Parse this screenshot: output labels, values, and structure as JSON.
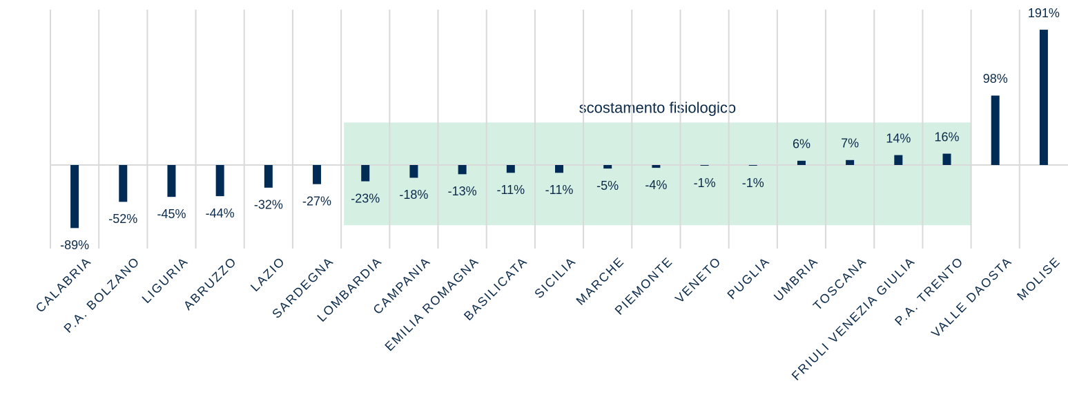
{
  "chart_data": {
    "type": "bar",
    "categories": [
      "CALABRIA",
      "P.A. BOLZANO",
      "LIGURIA",
      "ABRUZZO",
      "LAZIO",
      "SARDEGNA",
      "LOMBARDIA",
      "CAMPANIA",
      "EMILIA ROMAGNA",
      "BASILICATA",
      "SICILIA",
      "MARCHE",
      "PIEMONTE",
      "VENETO",
      "PUGLIA",
      "UMBRIA",
      "TOSCANA",
      "FRIULI VENEZIA GIULIA",
      "P.A. TRENTO",
      "VALLE DAOSTA",
      "MOLISE"
    ],
    "values": [
      -89,
      -52,
      -45,
      -44,
      -32,
      -27,
      -23,
      -18,
      -13,
      -11,
      -11,
      -5,
      -4,
      -1,
      -1,
      6,
      7,
      14,
      16,
      98,
      191
    ],
    "value_labels": [
      "-89%",
      "-52%",
      "-45%",
      "-44%",
      "-32%",
      "-27%",
      "-23%",
      "-18%",
      "-13%",
      "-11%",
      "-11%",
      "-5%",
      "-4%",
      "-1%",
      "-1%",
      "6%",
      "7%",
      "14%",
      "16%",
      "98%",
      "191%"
    ],
    "color": "#002b55",
    "ylim": [
      -100,
      200
    ],
    "grid": true,
    "band": {
      "label": "scostamento fisiologico",
      "from": "LOMBARDIA",
      "to": "P.A. TRENTO",
      "ylim": [
        -85,
        60
      ],
      "color": "#d6efe3"
    }
  }
}
